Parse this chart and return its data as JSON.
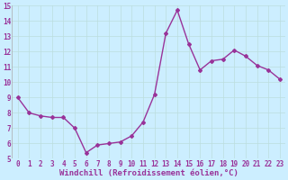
{
  "x": [
    0,
    1,
    2,
    3,
    4,
    5,
    6,
    7,
    8,
    9,
    10,
    11,
    12,
    13,
    14,
    15,
    16,
    17,
    18,
    19,
    20,
    21,
    22,
    23
  ],
  "y": [
    9.0,
    8.0,
    7.8,
    7.7,
    7.7,
    7.0,
    5.4,
    5.9,
    6.0,
    6.1,
    6.5,
    7.4,
    9.2,
    13.2,
    14.7,
    12.5,
    10.8,
    11.4,
    11.5,
    12.1,
    11.7,
    11.1,
    10.8,
    10.2
  ],
  "line_color": "#993399",
  "marker": "D",
  "marker_size": 2,
  "background_color": "#cceeff",
  "grid_color": "#bbdddd",
  "xlabel": "Windchill (Refroidissement éolien,°C)",
  "ylim": [
    5,
    15
  ],
  "xlim_min": -0.5,
  "xlim_max": 23.5,
  "yticks": [
    5,
    6,
    7,
    8,
    9,
    10,
    11,
    12,
    13,
    14,
    15
  ],
  "xticks": [
    0,
    1,
    2,
    3,
    4,
    5,
    6,
    7,
    8,
    9,
    10,
    11,
    12,
    13,
    14,
    15,
    16,
    17,
    18,
    19,
    20,
    21,
    22,
    23
  ],
  "tick_fontsize": 5.5,
  "xlabel_fontsize": 6.5,
  "label_color": "#993399",
  "linewidth": 1.0
}
